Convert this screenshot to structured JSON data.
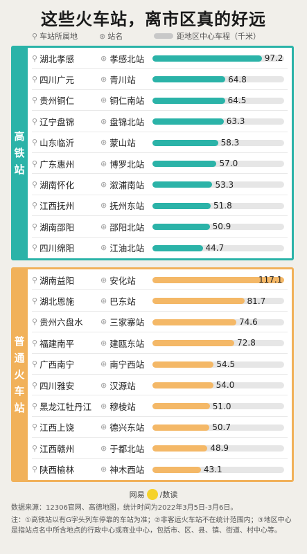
{
  "title": "这些火车站，离市区真的好远",
  "legend": {
    "province_label": "车站所属地",
    "station_label": "站名",
    "distance_label": "距地区中心车程（千米）"
  },
  "sections": [
    {
      "label_chars": [
        "高",
        "铁",
        "站"
      ]
    },
    {
      "label_chars": [
        "普",
        "通",
        "火",
        "车",
        "站"
      ]
    }
  ],
  "colors": {
    "high_speed": "#2bb3a8",
    "regular": "#f4b867",
    "track": "#e6e6e6"
  },
  "chart_data": [
    {
      "type": "bar",
      "xlim": [
        0,
        117.1
      ],
      "categories": [
        "孝感北站",
        "青川站",
        "铜仁南站",
        "盘锦北站",
        "蒙山站",
        "博罗北站",
        "溆浦南站",
        "抚州东站",
        "邵阳北站",
        "江油北站"
      ],
      "provinces": [
        "湖北孝感",
        "四川广元",
        "贵州铜仁",
        "辽宁盘锦",
        "山东临沂",
        "广东惠州",
        "湖南怀化",
        "江西抚州",
        "湖南邵阳",
        "四川绵阳"
      ],
      "values": [
        97.2,
        64.8,
        64.5,
        63.3,
        58.3,
        57.0,
        53.3,
        51.8,
        50.9,
        44.7
      ],
      "value_labels": [
        "97.2",
        "64.8",
        "64.5",
        "63.3",
        "58.3",
        "57.0",
        "53.3",
        "51.8",
        "50.9",
        "44.7"
      ]
    },
    {
      "type": "bar",
      "xlim": [
        0,
        117.1
      ],
      "categories": [
        "安化站",
        "巴东站",
        "三家寨站",
        "建瓯东站",
        "南宁西站",
        "汉源站",
        "穆棱站",
        "德兴东站",
        "于都北站",
        "神木西站"
      ],
      "provinces": [
        "湖南益阳",
        "湖北恩施",
        "贵州六盘水",
        "福建南平",
        "广西南宁",
        "四川雅安",
        "黑龙江牡丹江",
        "江西上饶",
        "江西赣州",
        "陕西榆林"
      ],
      "values": [
        117.1,
        81.7,
        74.6,
        72.8,
        54.5,
        54.0,
        51.0,
        50.7,
        48.9,
        43.1
      ],
      "value_labels": [
        "117.1",
        "81.7",
        "74.6",
        "72.8",
        "54.5",
        "54.0",
        "51.0",
        "50.7",
        "48.9",
        "43.1"
      ]
    }
  ],
  "credit": {
    "left": "网易",
    "middle": "数读",
    "sep": "/"
  },
  "source_note": "数据来源：12306官网、高德地图，统计时间为2022年3月5日-3月6日。",
  "footnote": "注：①高铁站以有G字头列车停靠的车站为准；②非客运火车站不在统计范围内；③地区中心是指站点名中所含地点的行政中心或商业中心，包括市、区、县、镇、街道、村中心等。"
}
